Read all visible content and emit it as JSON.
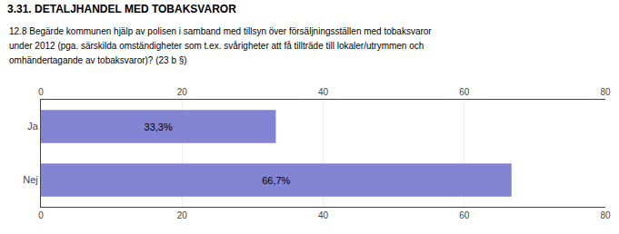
{
  "chart_data": {
    "type": "bar",
    "orientation": "horizontal",
    "title": "3.31. DETALJHANDEL MED TOBAKSVAROR",
    "annotations": [
      "12.8 Begärde kommunen hjälp av polisen i samband med tillsyn över försäljningsställen med tobaksvaror",
      "under 2012 (pga. särskilda omständigheter som t.ex. svårigheter att få tillträde till lokaler/utrymmen och",
      "omhändertagande av tobaksvaror)? (23 b §)"
    ],
    "categories": [
      "Ja",
      "Nej"
    ],
    "values": [
      33.3,
      66.7
    ],
    "value_labels": [
      "33,3%",
      "66,7%"
    ],
    "data_labels": true,
    "color": "#8484d4",
    "xlim": [
      0,
      80
    ],
    "xticks": [
      0,
      20,
      40,
      60,
      80
    ],
    "grid": true
  }
}
